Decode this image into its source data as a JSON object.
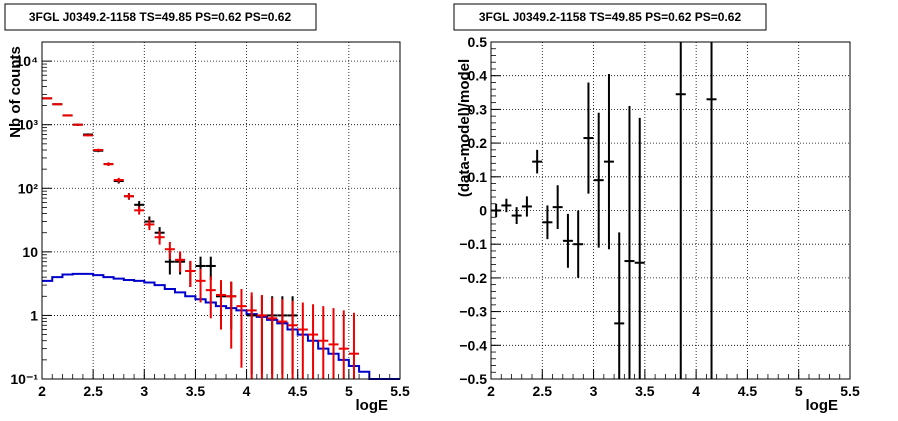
{
  "chart_data": [
    {
      "type": "histogram",
      "title": "3FGL J0349.2-1158 TS=49.85 PS=0.62 PS=0.62",
      "xlabel": "logE",
      "ylabel": "Nb of counts",
      "xlim": [
        2,
        5.5
      ],
      "ylim": [
        0.1,
        20000
      ],
      "yscale": "log",
      "grid": true,
      "x_ticks": [
        "2",
        "2.5",
        "3",
        "3.5",
        "4",
        "4.5",
        "5",
        "5.5"
      ],
      "y_ticks": [
        {
          "value": 0.1,
          "label": "10⁻¹"
        },
        {
          "value": 1,
          "label": "1"
        },
        {
          "value": 10,
          "label": "10"
        },
        {
          "value": 100,
          "label": "10²"
        },
        {
          "value": 1000,
          "label": "10³"
        },
        {
          "value": 10000,
          "label": "10⁴"
        }
      ],
      "series": [
        {
          "color": "#000000",
          "style": "errorbar",
          "points": [
            {
              "x": 2.05,
              "y": 2600,
              "ylo": 2550,
              "yhi": 2650
            },
            {
              "x": 2.15,
              "y": 2100,
              "ylo": 2050,
              "yhi": 2150
            },
            {
              "x": 2.25,
              "y": 1400,
              "ylo": 1360,
              "yhi": 1440
            },
            {
              "x": 2.35,
              "y": 1000,
              "ylo": 960,
              "yhi": 1040
            },
            {
              "x": 2.45,
              "y": 700,
              "ylo": 670,
              "yhi": 730
            },
            {
              "x": 2.55,
              "y": 390,
              "ylo": 370,
              "yhi": 410
            },
            {
              "x": 2.65,
              "y": 240,
              "ylo": 225,
              "yhi": 255
            },
            {
              "x": 2.75,
              "y": 130,
              "ylo": 119,
              "yhi": 141
            },
            {
              "x": 2.85,
              "y": 75,
              "ylo": 66,
              "yhi": 84
            },
            {
              "x": 2.95,
              "y": 55,
              "ylo": 47,
              "yhi": 63
            },
            {
              "x": 3.05,
              "y": 30,
              "ylo": 24,
              "yhi": 36
            },
            {
              "x": 3.15,
              "y": 20,
              "ylo": 15.5,
              "yhi": 24.5
            },
            {
              "x": 3.25,
              "y": 7,
              "ylo": 4.4,
              "yhi": 9.6
            },
            {
              "x": 3.35,
              "y": 7,
              "ylo": 4.4,
              "yhi": 9.6
            },
            {
              "x": 3.45,
              "y": 5,
              "ylo": 2.8,
              "yhi": 7.2
            },
            {
              "x": 3.55,
              "y": 6,
              "ylo": 3.6,
              "yhi": 8.4
            },
            {
              "x": 3.65,
              "y": 6,
              "ylo": 3.6,
              "yhi": 8.4
            },
            {
              "x": 3.75,
              "y": 2,
              "ylo": 0.6,
              "yhi": 3.4
            },
            {
              "x": 3.85,
              "y": 2,
              "ylo": 0.6,
              "yhi": 3.4
            },
            {
              "x": 4.05,
              "y": 1,
              "ylo": 0.12,
              "yhi": 2.0
            },
            {
              "x": 4.15,
              "y": 1,
              "ylo": 0.12,
              "yhi": 2.0
            },
            {
              "x": 4.25,
              "y": 1,
              "ylo": 0.12,
              "yhi": 2.0
            },
            {
              "x": 4.35,
              "y": 1,
              "ylo": 0.12,
              "yhi": 2.0
            },
            {
              "x": 4.45,
              "y": 1,
              "ylo": 0.12,
              "yhi": 2.0
            }
          ]
        },
        {
          "color": "#ee0000",
          "style": "errorbar",
          "points": [
            {
              "x": 2.05,
              "y": 2600,
              "ylo": 2550,
              "yhi": 2650
            },
            {
              "x": 2.15,
              "y": 2100,
              "ylo": 2050,
              "yhi": 2150
            },
            {
              "x": 2.25,
              "y": 1400,
              "ylo": 1360,
              "yhi": 1440
            },
            {
              "x": 2.35,
              "y": 1000,
              "ylo": 970,
              "yhi": 1030
            },
            {
              "x": 2.45,
              "y": 680,
              "ylo": 655,
              "yhi": 705
            },
            {
              "x": 2.55,
              "y": 400,
              "ylo": 380,
              "yhi": 420
            },
            {
              "x": 2.65,
              "y": 240,
              "ylo": 225,
              "yhi": 255
            },
            {
              "x": 2.75,
              "y": 135,
              "ylo": 124,
              "yhi": 146
            },
            {
              "x": 2.85,
              "y": 75,
              "ylo": 67,
              "yhi": 83
            },
            {
              "x": 2.95,
              "y": 45,
              "ylo": 38.5,
              "yhi": 51.5
            },
            {
              "x": 3.05,
              "y": 27,
              "ylo": 22,
              "yhi": 32
            },
            {
              "x": 3.15,
              "y": 17,
              "ylo": 13,
              "yhi": 21
            },
            {
              "x": 3.25,
              "y": 11,
              "ylo": 7.7,
              "yhi": 14.3
            },
            {
              "x": 3.35,
              "y": 7.5,
              "ylo": 4.8,
              "yhi": 10.2
            },
            {
              "x": 3.45,
              "y": 5,
              "ylo": 2.8,
              "yhi": 7.2
            },
            {
              "x": 3.55,
              "y": 3.5,
              "ylo": 1.6,
              "yhi": 5.4
            },
            {
              "x": 3.65,
              "y": 2.5,
              "ylo": 0.9,
              "yhi": 4.1
            },
            {
              "x": 3.75,
              "y": 2.1,
              "ylo": 0.6,
              "yhi": 3.6
            },
            {
              "x": 3.85,
              "y": 2.0,
              "ylo": 0.3,
              "yhi": 3.4
            },
            {
              "x": 3.95,
              "y": 1.4,
              "ylo": 0.15,
              "yhi": 2.6
            },
            {
              "x": 4.05,
              "y": 1.2,
              "ylo": 0.1,
              "yhi": 2.3
            },
            {
              "x": 4.15,
              "y": 1.0,
              "ylo": 0.1,
              "yhi": 2.1
            },
            {
              "x": 4.25,
              "y": 0.9,
              "ylo": 0.1,
              "yhi": 1.9
            },
            {
              "x": 4.35,
              "y": 0.8,
              "ylo": 0.1,
              "yhi": 1.8
            },
            {
              "x": 4.45,
              "y": 0.7,
              "ylo": 0.1,
              "yhi": 1.7
            },
            {
              "x": 4.55,
              "y": 0.6,
              "ylo": 0.1,
              "yhi": 1.6
            },
            {
              "x": 4.65,
              "y": 0.5,
              "ylo": 0.1,
              "yhi": 1.5
            },
            {
              "x": 4.75,
              "y": 0.4,
              "ylo": 0.1,
              "yhi": 1.4
            },
            {
              "x": 4.85,
              "y": 0.35,
              "ylo": 0.1,
              "yhi": 1.3
            },
            {
              "x": 4.95,
              "y": 0.3,
              "ylo": 0.1,
              "yhi": 1.2
            },
            {
              "x": 5.05,
              "y": 0.25,
              "ylo": 0.1,
              "yhi": 1.1
            }
          ]
        },
        {
          "color": "#0000cc",
          "style": "step",
          "bin_width": 0.1,
          "points": [
            {
              "x": 2.05,
              "y": 3.5
            },
            {
              "x": 2.15,
              "y": 4.0
            },
            {
              "x": 2.25,
              "y": 4.4
            },
            {
              "x": 2.35,
              "y": 4.5
            },
            {
              "x": 2.45,
              "y": 4.5
            },
            {
              "x": 2.55,
              "y": 4.3
            },
            {
              "x": 2.65,
              "y": 4.0
            },
            {
              "x": 2.75,
              "y": 3.8
            },
            {
              "x": 2.85,
              "y": 3.6
            },
            {
              "x": 2.95,
              "y": 3.5
            },
            {
              "x": 3.05,
              "y": 3.3
            },
            {
              "x": 3.15,
              "y": 3.0
            },
            {
              "x": 3.25,
              "y": 2.6
            },
            {
              "x": 3.35,
              "y": 2.3
            },
            {
              "x": 3.45,
              "y": 2.0
            },
            {
              "x": 3.55,
              "y": 1.8
            },
            {
              "x": 3.65,
              "y": 1.6
            },
            {
              "x": 3.75,
              "y": 1.4
            },
            {
              "x": 3.85,
              "y": 1.3
            },
            {
              "x": 3.95,
              "y": 1.2
            },
            {
              "x": 4.05,
              "y": 1.05
            },
            {
              "x": 4.15,
              "y": 0.95
            },
            {
              "x": 4.25,
              "y": 0.85
            },
            {
              "x": 4.35,
              "y": 0.75
            },
            {
              "x": 4.45,
              "y": 0.6
            },
            {
              "x": 4.55,
              "y": 0.5
            },
            {
              "x": 4.65,
              "y": 0.4
            },
            {
              "x": 4.75,
              "y": 0.3
            },
            {
              "x": 4.85,
              "y": 0.25
            },
            {
              "x": 4.95,
              "y": 0.2
            },
            {
              "x": 5.05,
              "y": 0.16
            },
            {
              "x": 5.15,
              "y": 0.13
            },
            {
              "x": 5.25,
              "y": 0.1
            },
            {
              "x": 5.35,
              "y": 0.1
            },
            {
              "x": 5.45,
              "y": 0.1
            }
          ]
        }
      ]
    },
    {
      "type": "errorbar",
      "title": "3FGL J0349.2-1158 TS=49.85 PS=0.62 PS=0.62",
      "xlabel": "logE",
      "ylabel": "(data-model)/model",
      "xlim": [
        2,
        5.5
      ],
      "ylim": [
        -0.5,
        0.5
      ],
      "yscale": "linear",
      "grid": true,
      "x_ticks": [
        "2",
        "2.5",
        "3",
        "3.5",
        "4",
        "4.5",
        "5",
        "5.5"
      ],
      "y_ticks": [
        "−0.5",
        "−0.4",
        "−0.3",
        "−0.2",
        "−0.1",
        "0",
        "0.1",
        "0.2",
        "0.3",
        "0.4",
        "0.5"
      ],
      "series": [
        {
          "color": "#000000",
          "points": [
            {
              "x": 2.05,
              "y": 0.0,
              "err": 0.02
            },
            {
              "x": 2.15,
              "y": 0.015,
              "err": 0.02
            },
            {
              "x": 2.25,
              "y": -0.015,
              "err": 0.025
            },
            {
              "x": 2.35,
              "y": 0.012,
              "err": 0.03
            },
            {
              "x": 2.45,
              "y": 0.145,
              "err": 0.035
            },
            {
              "x": 2.55,
              "y": -0.035,
              "err": 0.05
            },
            {
              "x": 2.65,
              "y": 0.01,
              "err": 0.065
            },
            {
              "x": 2.75,
              "y": -0.09,
              "err": 0.08
            },
            {
              "x": 2.85,
              "y": -0.1,
              "err": 0.1
            },
            {
              "x": 2.95,
              "y": 0.215,
              "err": 0.165
            },
            {
              "x": 3.05,
              "y": 0.09,
              "err": 0.2
            },
            {
              "x": 3.15,
              "y": 0.145,
              "err": 0.26
            },
            {
              "x": 3.25,
              "y": -0.335,
              "err": 0.27
            },
            {
              "x": 3.35,
              "y": -0.15,
              "err": 0.46
            },
            {
              "x": 3.45,
              "y": -0.155,
              "err": 0.43
            },
            {
              "x": 3.85,
              "y": 0.345,
              "err": 0.9
            },
            {
              "x": 4.15,
              "y": 0.33,
              "err": 0.9
            }
          ]
        }
      ]
    }
  ]
}
